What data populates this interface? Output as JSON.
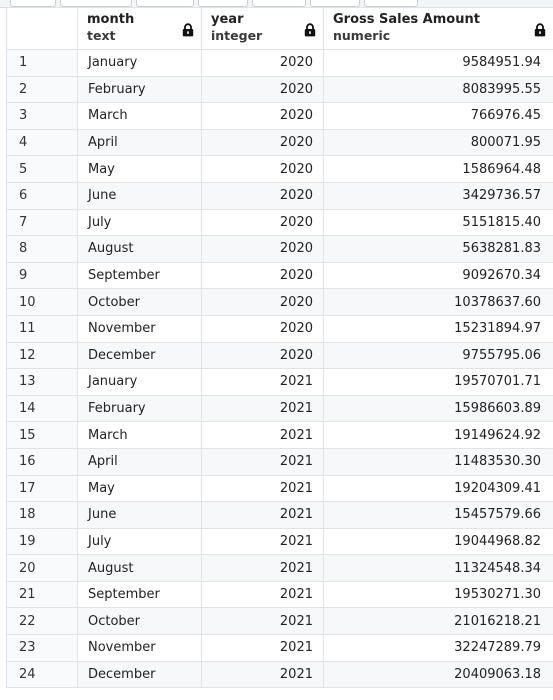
{
  "columns": {
    "month": {
      "name": "month",
      "type": "text"
    },
    "year": {
      "name": "year",
      "type": "integer"
    },
    "amount": {
      "name": "Gross Sales Amount",
      "type": "numeric"
    }
  },
  "icons": {
    "column_lock": "lock-icon"
  },
  "rows": [
    {
      "n": "1",
      "month": "January",
      "year": "2020",
      "amount": "9584951.94"
    },
    {
      "n": "2",
      "month": "February",
      "year": "2020",
      "amount": "8083995.55"
    },
    {
      "n": "3",
      "month": "March",
      "year": "2020",
      "amount": "766976.45"
    },
    {
      "n": "4",
      "month": "April",
      "year": "2020",
      "amount": "800071.95"
    },
    {
      "n": "5",
      "month": "May",
      "year": "2020",
      "amount": "1586964.48"
    },
    {
      "n": "6",
      "month": "June",
      "year": "2020",
      "amount": "3429736.57"
    },
    {
      "n": "7",
      "month": "July",
      "year": "2020",
      "amount": "5151815.40"
    },
    {
      "n": "8",
      "month": "August",
      "year": "2020",
      "amount": "5638281.83"
    },
    {
      "n": "9",
      "month": "September",
      "year": "2020",
      "amount": "9092670.34"
    },
    {
      "n": "10",
      "month": "October",
      "year": "2020",
      "amount": "10378637.60"
    },
    {
      "n": "11",
      "month": "November",
      "year": "2020",
      "amount": "15231894.97"
    },
    {
      "n": "12",
      "month": "December",
      "year": "2020",
      "amount": "9755795.06"
    },
    {
      "n": "13",
      "month": "January",
      "year": "2021",
      "amount": "19570701.71"
    },
    {
      "n": "14",
      "month": "February",
      "year": "2021",
      "amount": "15986603.89"
    },
    {
      "n": "15",
      "month": "March",
      "year": "2021",
      "amount": "19149624.92"
    },
    {
      "n": "16",
      "month": "April",
      "year": "2021",
      "amount": "11483530.30"
    },
    {
      "n": "17",
      "month": "May",
      "year": "2021",
      "amount": "19204309.41"
    },
    {
      "n": "18",
      "month": "June",
      "year": "2021",
      "amount": "15457579.66"
    },
    {
      "n": "19",
      "month": "July",
      "year": "2021",
      "amount": "19044968.82"
    },
    {
      "n": "20",
      "month": "August",
      "year": "2021",
      "amount": "11324548.34"
    },
    {
      "n": "21",
      "month": "September",
      "year": "2021",
      "amount": "19530271.30"
    },
    {
      "n": "22",
      "month": "October",
      "year": "2021",
      "amount": "21016218.21"
    },
    {
      "n": "23",
      "month": "November",
      "year": "2021",
      "amount": "32247289.79"
    },
    {
      "n": "24",
      "month": "December",
      "year": "2021",
      "amount": "20409063.18"
    }
  ]
}
